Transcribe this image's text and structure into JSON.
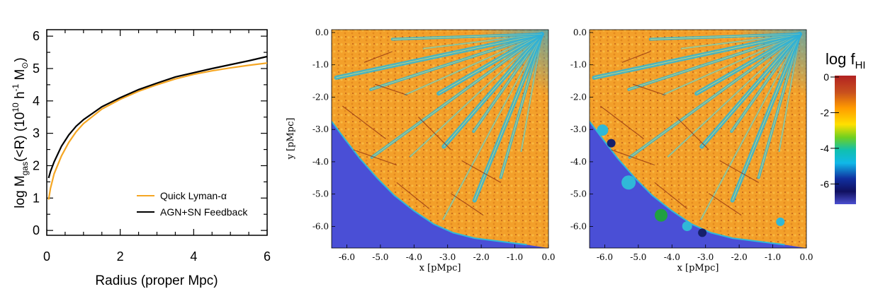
{
  "chart_data": [
    {
      "type": "line",
      "xlabel": "Radius (proper Mpc)",
      "ylabel_parts": {
        "a": "log M",
        "gas_sub": "gas",
        "b": "(<R) (10",
        "sup10": "10",
        "c": " h",
        "sup_m1": "-1",
        "d": " M",
        "sun_sub": "⊙",
        "e": ")"
      },
      "xlim": [
        0,
        6
      ],
      "ylim": [
        -0.15,
        6.2
      ],
      "xticks": [
        0,
        2,
        4,
        6
      ],
      "yticks": [
        0,
        1,
        2,
        3,
        4,
        5,
        6
      ],
      "legend_position": "bottom-right",
      "series": [
        {
          "name": "Quick Lyman-α",
          "color": "#f5a623",
          "x": [
            0.05,
            0.1,
            0.2,
            0.4,
            0.6,
            0.8,
            1.0,
            1.5,
            2.0,
            2.5,
            3.0,
            3.5,
            4.0,
            4.5,
            5.0,
            5.5,
            6.0
          ],
          "y": [
            0.95,
            1.3,
            1.75,
            2.3,
            2.72,
            3.05,
            3.3,
            3.75,
            4.05,
            4.3,
            4.5,
            4.68,
            4.82,
            4.93,
            5.02,
            5.1,
            5.17
          ]
        },
        {
          "name": "AGN+SN Feedback",
          "color": "#000000",
          "x": [
            0.05,
            0.1,
            0.2,
            0.4,
            0.6,
            0.8,
            1.0,
            1.5,
            2.0,
            2.5,
            3.0,
            3.5,
            4.0,
            4.5,
            5.0,
            5.5,
            6.0
          ],
          "y": [
            1.62,
            1.82,
            2.12,
            2.6,
            2.95,
            3.22,
            3.42,
            3.82,
            4.1,
            4.35,
            4.55,
            4.74,
            4.87,
            5.0,
            5.12,
            5.24,
            5.37
          ]
        }
      ]
    },
    {
      "type": "heatmap",
      "xlabel": "x [pMpc]",
      "ylabel": "y [pMpc]",
      "xticks": [
        "-6.0",
        "-5.0",
        "-4.0",
        "-3.0",
        "-2.0",
        "-1.0",
        "0.0"
      ],
      "yticks": [
        "0.0",
        "-1.0",
        "-2.0",
        "-3.0",
        "-4.0",
        "-5.0",
        "-6.0"
      ]
    },
    {
      "type": "heatmap",
      "xlabel": "x [pMpc]",
      "xticks": [
        "-6.0",
        "-5.0",
        "-4.0",
        "-3.0",
        "-2.0",
        "-1.0",
        "0.0"
      ],
      "yticks": [
        "0.0",
        "-1.0",
        "-2.0",
        "-3.0",
        "-4.0",
        "-5.0",
        "-6.0"
      ]
    }
  ],
  "colorbar": {
    "title_main": "log f",
    "title_sub": "HI",
    "ticks": [
      "0",
      "-2",
      "-4",
      "-6"
    ],
    "colors": [
      "#b22222",
      "#d2691e",
      "#ff8c00",
      "#ffd700",
      "#7fff00",
      "#00c8c8",
      "#00bfff",
      "#1e3a8a",
      "#101060",
      "#4b4fd0"
    ]
  },
  "map_colors": {
    "background": "#4a4fd6",
    "orange": "#f5a028",
    "cyan": "#30b8d8",
    "darkblue": "#16206a",
    "brown": "#8b2a10"
  }
}
